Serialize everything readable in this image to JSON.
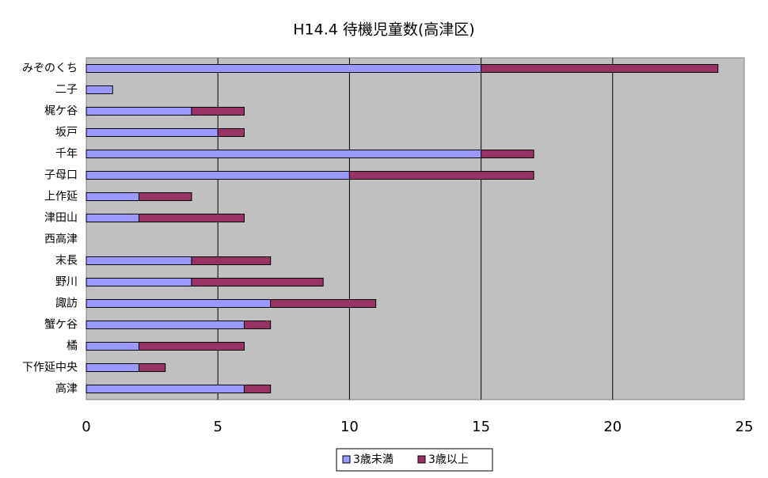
{
  "chart_data": {
    "type": "stacked-bar-horizontal",
    "title": "H14.4 待機児童数(高津区)",
    "categories": [
      "みぞのくち",
      "二子",
      "梶ケ谷",
      "坂戸",
      "千年",
      "子母口",
      "上作延",
      "津田山",
      "西高津",
      "末長",
      "野川",
      "諏訪",
      "蟹ケ谷",
      "橘",
      "下作延中央",
      "高津"
    ],
    "series": [
      {
        "name": "3歳未満",
        "color": "#9999ff",
        "values": [
          15,
          1,
          4,
          5,
          15,
          10,
          2,
          2,
          0,
          4,
          4,
          7,
          6,
          2,
          2,
          6
        ]
      },
      {
        "name": "3歳以上",
        "color": "#993366",
        "values": [
          9,
          0,
          2,
          1,
          2,
          7,
          2,
          4,
          0,
          3,
          5,
          4,
          1,
          4,
          1,
          1
        ]
      }
    ],
    "xlim": [
      0,
      25
    ],
    "xticks": [
      0,
      5,
      10,
      15,
      20,
      25
    ],
    "grid": true,
    "legend": "bottom"
  }
}
